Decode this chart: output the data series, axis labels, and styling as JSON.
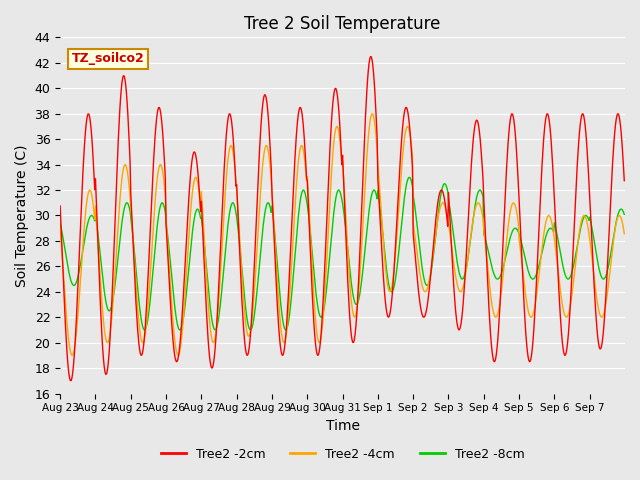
{
  "title": "Tree 2 Soil Temperature",
  "xlabel": "Time",
  "ylabel": "Soil Temperature (C)",
  "ylim": [
    16,
    44
  ],
  "plot_bg_color": "#e8e8e8",
  "colors": {
    "2cm": "#ff0000",
    "4cm": "#ffa500",
    "8cm": "#00cc00"
  },
  "legend_labels": [
    "Tree2 -2cm",
    "Tree2 -4cm",
    "Tree2 -8cm"
  ],
  "annotation_text": "TZ_soilco2",
  "x_tick_labels": [
    "Aug 23",
    "Aug 24",
    "Aug 25",
    "Aug 26",
    "Aug 27",
    "Aug 28",
    "Aug 29",
    "Aug 30",
    "Aug 31",
    "Sep 1",
    "Sep 2",
    "Sep 3",
    "Sep 4",
    "Sep 5",
    "Sep 6",
    "Sep 7"
  ],
  "num_days": 16,
  "points_per_day": 48,
  "day_peaks_2cm": [
    38,
    41,
    38.5,
    35,
    38,
    39.5,
    38.5,
    40,
    42.5,
    38.5,
    32,
    37.5,
    38,
    38,
    38,
    38
  ],
  "day_mins_2cm": [
    17,
    17.5,
    19,
    18.5,
    18,
    19,
    19,
    19,
    20,
    22,
    22,
    21,
    18.5,
    18.5,
    19,
    19.5
  ],
  "day_peaks_4cm": [
    32,
    34,
    34,
    33,
    35.5,
    35.5,
    35.5,
    37,
    38,
    37,
    31,
    31,
    31,
    30,
    30,
    30
  ],
  "day_mins_4cm": [
    19,
    20,
    20,
    19,
    20,
    20.5,
    20,
    20,
    22,
    24,
    24,
    24,
    22,
    22,
    22,
    22
  ],
  "day_peaks_8cm": [
    30,
    31,
    31,
    30.5,
    31,
    31,
    32,
    32,
    32,
    33,
    32.5,
    32,
    29,
    29,
    30,
    30.5
  ],
  "day_mins_8cm": [
    24.5,
    22.5,
    21,
    21,
    21,
    21,
    21,
    22,
    23,
    24,
    24.5,
    25,
    25,
    25,
    25,
    25
  ],
  "phase_2cm": 0.0,
  "phase_4cm": 0.04,
  "phase_8cm": 0.09
}
